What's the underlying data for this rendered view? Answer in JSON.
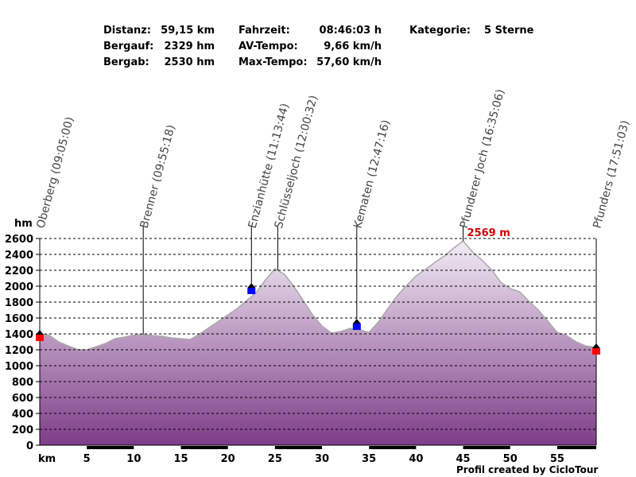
{
  "stats": {
    "distanz_label": "Distanz:",
    "distanz_value": "59,15 km",
    "bergauf_label": "Bergauf:",
    "bergauf_value": "2329 hm",
    "bergab_label": "Bergab:",
    "bergab_value": "2530 hm",
    "fahrzeit_label": "Fahrzeit:",
    "fahrzeit_value": "08:46:03 h",
    "avtempo_label": "AV-Tempo:",
    "avtempo_value": "9,66 km/h",
    "maxtempo_label": "Max-Tempo:",
    "maxtempo_value": "57,60 km/h",
    "kategorie_label": "Kategorie:",
    "kategorie_value": "5 Sterne"
  },
  "credit": "Profil created by CicloTour",
  "chart_data": {
    "type": "area",
    "ylabel": "hm",
    "xlabel": "km",
    "ylim": [
      0,
      2600
    ],
    "xlim": [
      0,
      59.15
    ],
    "y_ticks": [
      0,
      200,
      400,
      600,
      800,
      1000,
      1200,
      1400,
      1600,
      1800,
      2000,
      2200,
      2400,
      2600
    ],
    "x_ticks": [
      5,
      10,
      15,
      20,
      25,
      30,
      35,
      40,
      45,
      50,
      55
    ],
    "grid": "horizontal-dashed",
    "colors": {
      "fill_top": "#f3eef5",
      "fill_bottom": "#7e3d88",
      "line": "#aaaaaa",
      "start_end_marker": "#ff0000",
      "waypoint_marker": "#0000ff"
    },
    "profile": [
      [
        0,
        1400
      ],
      [
        1,
        1385
      ],
      [
        2,
        1300
      ],
      [
        3,
        1250
      ],
      [
        4,
        1205
      ],
      [
        5,
        1200
      ],
      [
        6,
        1240
      ],
      [
        7,
        1280
      ],
      [
        8,
        1340
      ],
      [
        9,
        1360
      ],
      [
        10,
        1385
      ],
      [
        11,
        1395
      ],
      [
        12,
        1380
      ],
      [
        13,
        1370
      ],
      [
        14,
        1350
      ],
      [
        15,
        1340
      ],
      [
        16,
        1330
      ],
      [
        17,
        1400
      ],
      [
        18,
        1480
      ],
      [
        19,
        1560
      ],
      [
        20,
        1640
      ],
      [
        21,
        1720
      ],
      [
        22,
        1820
      ],
      [
        23,
        1920
      ],
      [
        24,
        2080
      ],
      [
        25,
        2220
      ],
      [
        26,
        2150
      ],
      [
        27,
        2000
      ],
      [
        28,
        1820
      ],
      [
        29,
        1640
      ],
      [
        30,
        1500
      ],
      [
        31,
        1410
      ],
      [
        32,
        1430
      ],
      [
        33,
        1470
      ],
      [
        34,
        1450
      ],
      [
        35,
        1420
      ],
      [
        36,
        1550
      ],
      [
        37,
        1720
      ],
      [
        38,
        1880
      ],
      [
        39,
        2010
      ],
      [
        40,
        2130
      ],
      [
        41,
        2210
      ],
      [
        42,
        2300
      ],
      [
        43,
        2380
      ],
      [
        44,
        2480
      ],
      [
        45,
        2569
      ],
      [
        46,
        2430
      ],
      [
        47,
        2330
      ],
      [
        48,
        2210
      ],
      [
        49,
        2050
      ],
      [
        50,
        1970
      ],
      [
        51,
        1930
      ],
      [
        52,
        1810
      ],
      [
        53,
        1700
      ],
      [
        54,
        1560
      ],
      [
        55,
        1420
      ],
      [
        56,
        1380
      ],
      [
        57,
        1300
      ],
      [
        58,
        1250
      ],
      [
        59.15,
        1230
      ]
    ],
    "max_label": "2569 m",
    "max_point": [
      45,
      2569
    ],
    "waypoints": [
      {
        "name": "Oberberg (09:05:00)",
        "km": 0,
        "elev": 1400,
        "marker": "red"
      },
      {
        "name": "Brenner (09:55:18)",
        "km": 11,
        "elev": 1395,
        "marker": "none"
      },
      {
        "name": "Enzianhütte (11:13:44)",
        "km": 22.5,
        "elev": 1920,
        "marker": "blue"
      },
      {
        "name": "Schlüsseljoch (12:00:32)",
        "km": 25.3,
        "elev": 2200,
        "marker": "none"
      },
      {
        "name": "Kematen (12:47:16)",
        "km": 33.7,
        "elev": 1470,
        "marker": "blue"
      },
      {
        "name": "Pfunderer Joch (16:35:06)",
        "km": 45,
        "elev": 2569,
        "marker": "none"
      },
      {
        "name": "Pfunders (17:51:03)",
        "km": 59.15,
        "elev": 1230,
        "marker": "red"
      }
    ]
  }
}
